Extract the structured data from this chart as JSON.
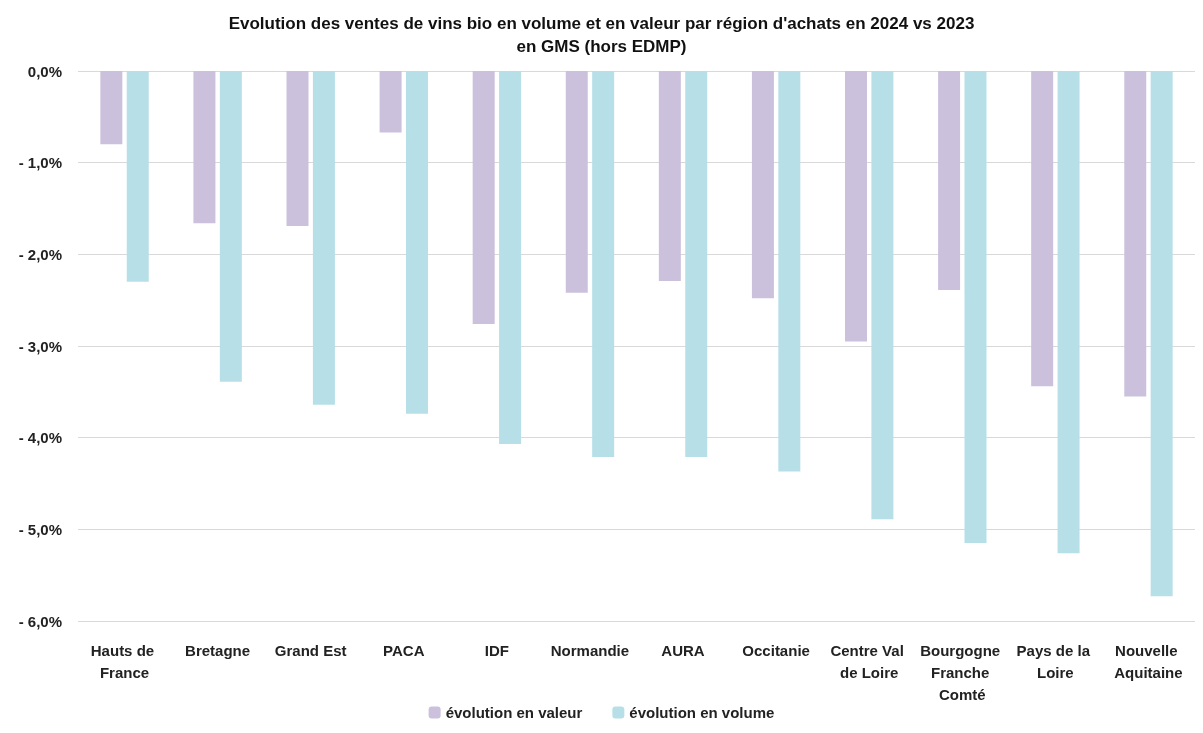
{
  "chart_data": {
    "type": "bar",
    "title": "Evolution des ventes de vins bio en volume et en valeur par région d'achats en 2024 vs 2023",
    "subtitle": "en GMS (hors EDMP)",
    "categories": [
      "Hauts de France",
      "Bretagne",
      "Grand Est",
      "PACA",
      "IDF",
      "Normandie",
      "AURA",
      "Occitanie",
      "Centre Val de Loire",
      "Bourgogne Franche Comté",
      "Pays de la Loire",
      "Nouvelle Aquitaine"
    ],
    "series": [
      {
        "name": "évolution en valeur",
        "color": "#ccc1dc",
        "values": [
          -0.8,
          -1.66,
          -1.69,
          -0.67,
          -2.76,
          -2.42,
          -2.29,
          -2.48,
          -2.95,
          -2.39,
          -3.44,
          -3.55
        ]
      },
      {
        "name": "évolution en volume",
        "color": "#b7dfe8",
        "values": [
          -2.3,
          -3.39,
          -3.64,
          -3.74,
          -4.07,
          -4.21,
          -4.21,
          -4.37,
          -4.89,
          -5.15,
          -5.26,
          -5.73
        ]
      }
    ],
    "ylim": [
      -6,
      0
    ],
    "yticks": [
      {
        "value": -6,
        "label": "- 6,0%"
      },
      {
        "value": -5,
        "label": "- 5,0%"
      },
      {
        "value": -4,
        "label": "- 4,0%"
      },
      {
        "value": -3,
        "label": "- 3,0%"
      },
      {
        "value": -2,
        "label": "- 2,0%"
      },
      {
        "value": -1,
        "label": "- 1,0%"
      },
      {
        "value": 0,
        "label": "0,0%"
      }
    ],
    "grid": "y",
    "legend": "bottom"
  }
}
